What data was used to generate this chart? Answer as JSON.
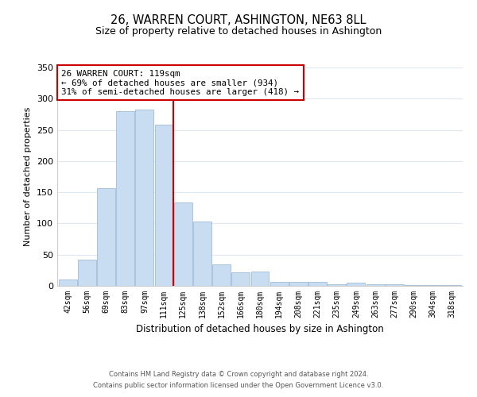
{
  "title": "26, WARREN COURT, ASHINGTON, NE63 8LL",
  "subtitle": "Size of property relative to detached houses in Ashington",
  "xlabel": "Distribution of detached houses by size in Ashington",
  "ylabel": "Number of detached properties",
  "bin_labels": [
    "42sqm",
    "56sqm",
    "69sqm",
    "83sqm",
    "97sqm",
    "111sqm",
    "125sqm",
    "138sqm",
    "152sqm",
    "166sqm",
    "180sqm",
    "194sqm",
    "208sqm",
    "221sqm",
    "235sqm",
    "249sqm",
    "263sqm",
    "277sqm",
    "290sqm",
    "304sqm",
    "318sqm"
  ],
  "bar_heights": [
    10,
    42,
    157,
    280,
    282,
    258,
    134,
    103,
    35,
    22,
    23,
    7,
    6,
    6,
    2,
    5,
    2,
    2,
    1,
    1,
    1
  ],
  "bar_color": "#c8ddf2",
  "bar_edge_color": "#a0bcd8",
  "property_line_color": "#cc0000",
  "annotation_text": "26 WARREN COURT: 119sqm\n← 69% of detached houses are smaller (934)\n31% of semi-detached houses are larger (418) →",
  "annotation_box_color": "#ffffff",
  "annotation_box_edge": "#cc0000",
  "ylim": [
    0,
    350
  ],
  "yticks": [
    0,
    50,
    100,
    150,
    200,
    250,
    300,
    350
  ],
  "footnote1": "Contains HM Land Registry data © Crown copyright and database right 2024.",
  "footnote2": "Contains public sector information licensed under the Open Government Licence v3.0.",
  "background_color": "#ffffff",
  "grid_color": "#dce8f5"
}
